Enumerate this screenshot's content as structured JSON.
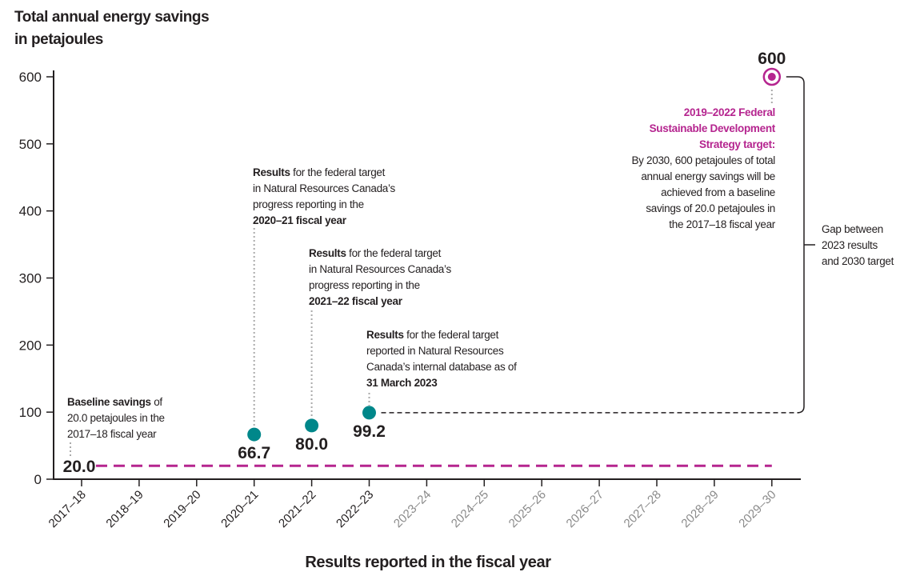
{
  "chart_data": {
    "type": "scatter",
    "title": "Total annual energy savings in petajoules",
    "title_lines": [
      "Total annual energy savings",
      "in petajoules"
    ],
    "xlabel": "Results reported in the fiscal year",
    "ylabel": "",
    "ylim": [
      0,
      600
    ],
    "yticks": [
      0,
      100,
      200,
      300,
      400,
      500,
      600
    ],
    "categories": [
      "2017–18",
      "2018–19",
      "2019–20",
      "2020–21",
      "2021–22",
      "2022–23",
      "2023–24",
      "2024–25",
      "2025–26",
      "2026–27",
      "2027–28",
      "2028–29",
      "2029–30"
    ],
    "future_categories_greyed_from": "2023–24",
    "grid": false,
    "baseline": {
      "category": "2017–18",
      "value": 20.0,
      "label": "20.0"
    },
    "results": [
      {
        "category": "2020–21",
        "value": 66.7,
        "label": "66.7"
      },
      {
        "category": "2021–22",
        "value": 80.0,
        "label": "80.0"
      },
      {
        "category": "2022–23",
        "value": 99.2,
        "label": "99.2"
      }
    ],
    "target": {
      "category": "2029–30",
      "value": 600,
      "label": "600"
    },
    "colors": {
      "results": "#00878a",
      "target": "#b5258f",
      "text": "#231f20",
      "future_ticks": "#8a8a8a"
    },
    "annotations": {
      "baseline": [
        [
          {
            "b": "Baseline savings"
          },
          {
            "t": " of"
          }
        ],
        [
          {
            "t": "20.0 petajoules in the"
          }
        ],
        [
          {
            "t": "2017–18 fiscal year"
          }
        ]
      ],
      "r2020": [
        [
          {
            "b": "Results"
          },
          {
            "t": " for the federal target"
          }
        ],
        [
          {
            "t": "in Natural Resources Canada’s"
          }
        ],
        [
          {
            "t": "progress reporting in the"
          }
        ],
        [
          {
            "b": "2020–21 fiscal year"
          }
        ]
      ],
      "r2021": [
        [
          {
            "b": "Results"
          },
          {
            "t": " for the federal target"
          }
        ],
        [
          {
            "t": "in Natural Resources Canada’s"
          }
        ],
        [
          {
            "t": "progress reporting in the"
          }
        ],
        [
          {
            "b": "2021–22 fiscal year"
          }
        ]
      ],
      "r2022": [
        [
          {
            "b": "Results"
          },
          {
            "t": " for the federal target"
          }
        ],
        [
          {
            "t": "reported in Natural Resources"
          }
        ],
        [
          {
            "t": "Canada’s internal database as of"
          }
        ],
        [
          {
            "b": "31 March 2023"
          }
        ]
      ],
      "target": [
        [
          {
            "m": "2019–2022 Federal"
          }
        ],
        [
          {
            "m": "Sustainable Development"
          }
        ],
        [
          {
            "m": "Strategy target:"
          }
        ],
        [
          {
            "t": "By 2030, 600 petajoules of total"
          }
        ],
        [
          {
            "t": "annual energy savings will be"
          }
        ],
        [
          {
            "t": "achieved from a baseline"
          }
        ],
        [
          {
            "t": "savings of 20.0 petajoules in"
          }
        ],
        [
          {
            "t": "the 2017–18 fiscal year"
          }
        ]
      ],
      "gap": [
        [
          {
            "t": "Gap between"
          }
        ],
        [
          {
            "t": "2023 results"
          }
        ],
        [
          {
            "t": "and 2030 target"
          }
        ]
      ]
    }
  }
}
